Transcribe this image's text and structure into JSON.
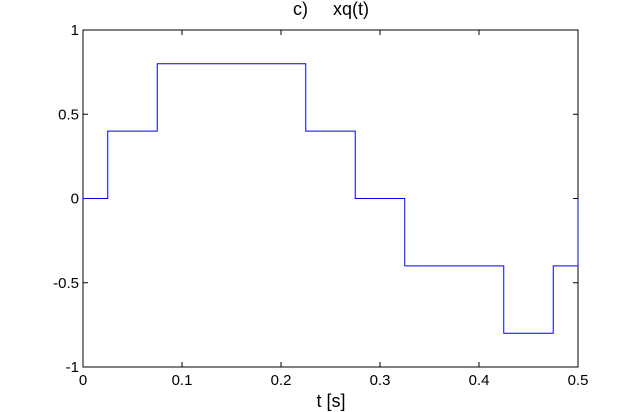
{
  "chart_data": {
    "type": "line",
    "title": "c)     xq(t)",
    "xlabel": "t [s]",
    "ylabel": "",
    "xlim": [
      0,
      0.5
    ],
    "ylim": [
      -1,
      1
    ],
    "xticks": [
      0,
      0.1,
      0.2,
      0.3,
      0.4,
      0.5
    ],
    "xtick_labels": [
      "0",
      "0.1",
      "0.2",
      "0.3",
      "0.4",
      "0.5"
    ],
    "yticks": [
      -1,
      -0.5,
      0,
      0.5,
      1
    ],
    "ytick_labels": [
      "-1",
      "-0.5",
      "0",
      "0.5",
      "1"
    ],
    "grid": false,
    "step_style": "staircase",
    "series": [
      {
        "color": "#0000ff",
        "x": [
          0,
          0.025,
          0.075,
          0.175,
          0.225,
          0.275,
          0.325,
          0.425,
          0.475,
          0.5
        ],
        "y": [
          0,
          0.4,
          0.8,
          0.8,
          0.4,
          0,
          -0.4,
          -0.8,
          -0.4,
          0
        ]
      }
    ]
  }
}
